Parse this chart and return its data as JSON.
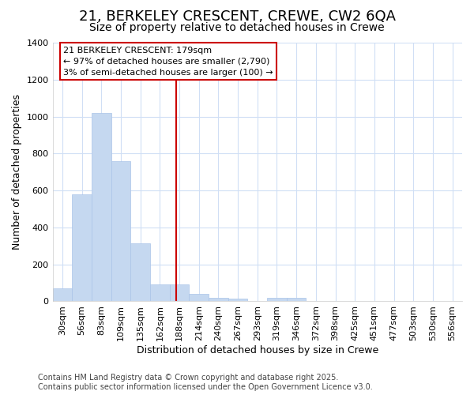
{
  "title": "21, BERKELEY CRESCENT, CREWE, CW2 6QA",
  "subtitle": "Size of property relative to detached houses in Crewe",
  "xlabel": "Distribution of detached houses by size in Crewe",
  "ylabel": "Number of detached properties",
  "bar_color": "#c5d8f0",
  "bar_edge_color": "#aac4e8",
  "background_color": "#ffffff",
  "fig_background_color": "#ffffff",
  "grid_color": "#d0dff5",
  "categories": [
    "30sqm",
    "56sqm",
    "83sqm",
    "109sqm",
    "135sqm",
    "162sqm",
    "188sqm",
    "214sqm",
    "240sqm",
    "267sqm",
    "293sqm",
    "319sqm",
    "346sqm",
    "372sqm",
    "398sqm",
    "425sqm",
    "451sqm",
    "477sqm",
    "503sqm",
    "530sqm",
    "556sqm"
  ],
  "values": [
    70,
    580,
    1020,
    760,
    315,
    90,
    90,
    40,
    20,
    15,
    0,
    20,
    20,
    0,
    0,
    0,
    0,
    0,
    0,
    0,
    0
  ],
  "ylim": [
    0,
    1400
  ],
  "yticks": [
    0,
    200,
    400,
    600,
    800,
    1000,
    1200,
    1400
  ],
  "line_x_index": 6.0,
  "annotation_text": "21 BERKELEY CRESCENT: 179sqm\n← 97% of detached houses are smaller (2,790)\n3% of semi-detached houses are larger (100) →",
  "annotation_box_facecolor": "#ffffff",
  "annotation_box_edgecolor": "#cc0000",
  "line_color": "#cc0000",
  "footer_line1": "Contains HM Land Registry data © Crown copyright and database right 2025.",
  "footer_line2": "Contains public sector information licensed under the Open Government Licence v3.0.",
  "title_fontsize": 13,
  "subtitle_fontsize": 10,
  "ylabel_fontsize": 9,
  "xlabel_fontsize": 9,
  "tick_fontsize": 8,
  "annotation_fontsize": 8,
  "footer_fontsize": 7
}
